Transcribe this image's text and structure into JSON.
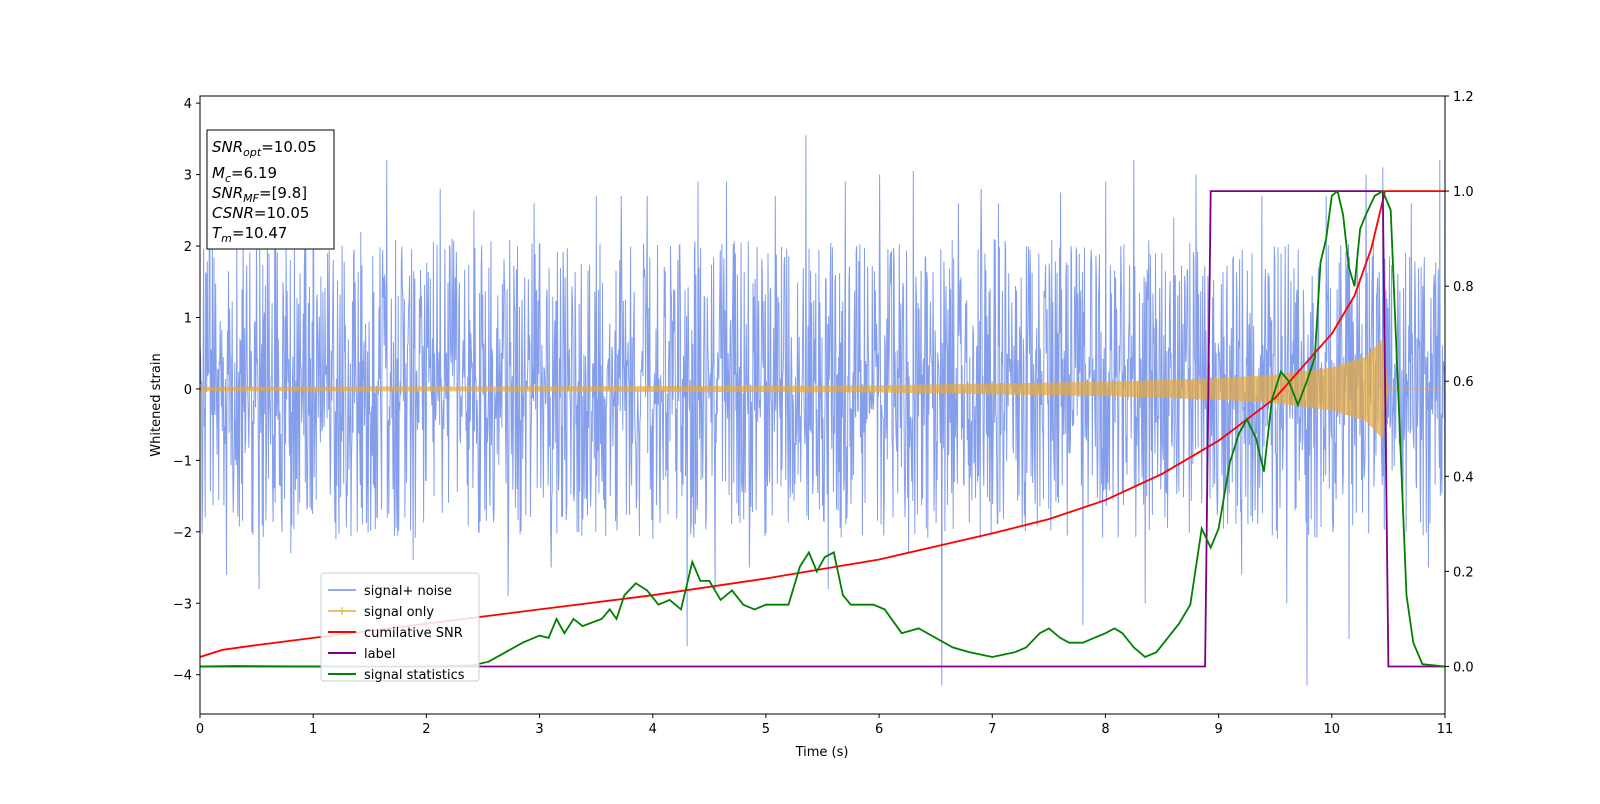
{
  "chart_data": {
    "type": "line",
    "xlabel": "Time (s)",
    "ylabel_left": "Whitened strain",
    "ylabel_right": "",
    "xlim": [
      0,
      11
    ],
    "ylim_left": [
      -4.55,
      4.1
    ],
    "ylim_right": [
      -0.1,
      1.2
    ],
    "x_ticks": [
      0,
      1,
      2,
      3,
      4,
      5,
      6,
      7,
      8,
      9,
      10,
      11
    ],
    "y_ticks_left": [
      -4,
      -3,
      -2,
      -1,
      0,
      1,
      2,
      3,
      4
    ],
    "y_ticks_right": [
      0.0,
      0.2,
      0.4,
      0.6,
      0.8,
      1.0,
      1.2
    ],
    "grid": false,
    "legend_position": "lower-left",
    "info_box": {
      "snr_opt": {
        "sym": "SNR",
        "sub": "opt",
        "val": "=10.05"
      },
      "mc": {
        "sym": "M",
        "sub": "c",
        "val": "=6.19"
      },
      "snr_mf": {
        "sym": "SNR",
        "sub": "MF",
        "val": "=[9.8]"
      },
      "csnr": {
        "sym": "CSNR",
        "val": "=10.05"
      },
      "tm": {
        "sym": "T",
        "sub": "m",
        "val": "=10.47"
      }
    },
    "series": [
      {
        "key": "noise",
        "name": "signal+ noise",
        "color": "#6f8de8",
        "axis": "left",
        "description": "whitened noisy strain, amplitude roughly ±1.8 with spikes to ±3.5",
        "envelope_peaks": [
          [
            0.08,
            2.1
          ],
          [
            0.23,
            -2.6
          ],
          [
            0.38,
            2.3
          ],
          [
            0.52,
            -2.8
          ],
          [
            0.66,
            2.0
          ],
          [
            0.8,
            -2.3
          ],
          [
            1.0,
            2.7
          ],
          [
            1.2,
            -2.1
          ],
          [
            1.42,
            2.2
          ],
          [
            1.65,
            3.2
          ],
          [
            1.88,
            -2.4
          ],
          [
            2.12,
            2.8
          ],
          [
            2.42,
            2.5
          ],
          [
            2.72,
            -2.9
          ],
          [
            2.95,
            2.6
          ],
          [
            3.1,
            -2.5
          ],
          [
            3.33,
            -2.0
          ],
          [
            3.5,
            2.7
          ],
          [
            3.72,
            2.7
          ],
          [
            3.95,
            2.7
          ],
          [
            4.3,
            -3.6
          ],
          [
            4.4,
            2.9
          ],
          [
            4.55,
            -2.8
          ],
          [
            4.65,
            2.9
          ],
          [
            4.85,
            -2.5
          ],
          [
            5.08,
            2.7
          ],
          [
            5.35,
            3.55
          ],
          [
            5.55,
            -2.8
          ],
          [
            5.7,
            2.9
          ],
          [
            6.0,
            3.0
          ],
          [
            6.26,
            -2.3
          ],
          [
            6.3,
            3.05
          ],
          [
            6.55,
            -4.15
          ],
          [
            6.7,
            2.6
          ],
          [
            6.9,
            2.8
          ],
          [
            7.05,
            2.6
          ],
          [
            7.3,
            2.0
          ],
          [
            7.6,
            2.75
          ],
          [
            7.8,
            -3.3
          ],
          [
            8.0,
            2.9
          ],
          [
            8.25,
            3.2
          ],
          [
            8.35,
            -3.0
          ],
          [
            8.6,
            2.4
          ],
          [
            8.8,
            3.0
          ],
          [
            9.2,
            -2.6
          ],
          [
            9.38,
            2.7
          ],
          [
            9.6,
            -3.0
          ],
          [
            9.78,
            -4.15
          ],
          [
            9.95,
            2.7
          ],
          [
            10.15,
            -3.5
          ],
          [
            10.3,
            3.0
          ],
          [
            10.45,
            3.1
          ],
          [
            10.7,
            2.6
          ],
          [
            10.85,
            -2.5
          ],
          [
            10.95,
            3.2
          ]
        ]
      },
      {
        "key": "signal",
        "name": "signal only",
        "color": "#e8a93a",
        "axis": "left",
        "description": "chirp: amplitude grows from about 0.03 at t=0 to about 0.7 at t=10.45, then ~0",
        "amplitude": [
          [
            0,
            0.03
          ],
          [
            3,
            0.035
          ],
          [
            6,
            0.05
          ],
          [
            8,
            0.1
          ],
          [
            9,
            0.15
          ],
          [
            9.5,
            0.2
          ],
          [
            10,
            0.3
          ],
          [
            10.3,
            0.45
          ],
          [
            10.45,
            0.7
          ],
          [
            10.5,
            0.0
          ],
          [
            11,
            0.0
          ]
        ]
      },
      {
        "key": "csnr",
        "name": "cumilative SNR",
        "color": "#ff0000",
        "axis": "right",
        "points": [
          [
            0,
            0.02
          ],
          [
            0.2,
            0.035
          ],
          [
            0.5,
            0.045
          ],
          [
            1,
            0.06
          ],
          [
            2,
            0.09
          ],
          [
            3,
            0.12
          ],
          [
            4,
            0.15
          ],
          [
            5,
            0.185
          ],
          [
            6,
            0.225
          ],
          [
            7,
            0.28
          ],
          [
            7.5,
            0.31
          ],
          [
            8,
            0.35
          ],
          [
            8.5,
            0.405
          ],
          [
            9,
            0.475
          ],
          [
            9.5,
            0.565
          ],
          [
            10,
            0.7
          ],
          [
            10.2,
            0.78
          ],
          [
            10.35,
            0.88
          ],
          [
            10.47,
            1.0
          ],
          [
            11,
            1.0
          ]
        ]
      },
      {
        "key": "label",
        "name": "label",
        "color": "#800080",
        "axis": "right",
        "points": [
          [
            0,
            0.0
          ],
          [
            8.88,
            0.0
          ],
          [
            8.93,
            1.0
          ],
          [
            10.45,
            1.0
          ],
          [
            10.5,
            0.0
          ],
          [
            11,
            0.0
          ]
        ]
      },
      {
        "key": "stats",
        "name": "signal statistics",
        "color": "#008000",
        "axis": "right",
        "points": [
          [
            0,
            0.0
          ],
          [
            0.3,
            0.001
          ],
          [
            1.0,
            0.0
          ],
          [
            2.0,
            0.0
          ],
          [
            2.4,
            0.002
          ],
          [
            2.55,
            0.01
          ],
          [
            2.7,
            0.03
          ],
          [
            2.85,
            0.05
          ],
          [
            3.0,
            0.065
          ],
          [
            3.08,
            0.06
          ],
          [
            3.15,
            0.1
          ],
          [
            3.22,
            0.07
          ],
          [
            3.3,
            0.1
          ],
          [
            3.38,
            0.085
          ],
          [
            3.55,
            0.1
          ],
          [
            3.62,
            0.12
          ],
          [
            3.68,
            0.1
          ],
          [
            3.75,
            0.15
          ],
          [
            3.85,
            0.175
          ],
          [
            3.95,
            0.16
          ],
          [
            4.05,
            0.13
          ],
          [
            4.15,
            0.14
          ],
          [
            4.25,
            0.12
          ],
          [
            4.3,
            0.17
          ],
          [
            4.35,
            0.22
          ],
          [
            4.42,
            0.18
          ],
          [
            4.5,
            0.18
          ],
          [
            4.6,
            0.14
          ],
          [
            4.7,
            0.16
          ],
          [
            4.8,
            0.13
          ],
          [
            4.9,
            0.12
          ],
          [
            5.0,
            0.13
          ],
          [
            5.1,
            0.13
          ],
          [
            5.2,
            0.13
          ],
          [
            5.3,
            0.21
          ],
          [
            5.38,
            0.24
          ],
          [
            5.45,
            0.2
          ],
          [
            5.52,
            0.23
          ],
          [
            5.6,
            0.24
          ],
          [
            5.68,
            0.15
          ],
          [
            5.75,
            0.13
          ],
          [
            5.85,
            0.13
          ],
          [
            5.95,
            0.13
          ],
          [
            6.05,
            0.12
          ],
          [
            6.2,
            0.07
          ],
          [
            6.35,
            0.08
          ],
          [
            6.5,
            0.06
          ],
          [
            6.65,
            0.04
          ],
          [
            6.8,
            0.03
          ],
          [
            7.0,
            0.02
          ],
          [
            7.1,
            0.025
          ],
          [
            7.2,
            0.03
          ],
          [
            7.3,
            0.04
          ],
          [
            7.42,
            0.07
          ],
          [
            7.5,
            0.08
          ],
          [
            7.6,
            0.06
          ],
          [
            7.68,
            0.05
          ],
          [
            7.8,
            0.05
          ],
          [
            7.9,
            0.06
          ],
          [
            8.0,
            0.07
          ],
          [
            8.08,
            0.08
          ],
          [
            8.15,
            0.07
          ],
          [
            8.25,
            0.04
          ],
          [
            8.35,
            0.02
          ],
          [
            8.45,
            0.03
          ],
          [
            8.55,
            0.06
          ],
          [
            8.65,
            0.09
          ],
          [
            8.75,
            0.13
          ],
          [
            8.85,
            0.29
          ],
          [
            8.93,
            0.25
          ],
          [
            9.0,
            0.29
          ],
          [
            9.1,
            0.43
          ],
          [
            9.18,
            0.49
          ],
          [
            9.25,
            0.52
          ],
          [
            9.33,
            0.48
          ],
          [
            9.4,
            0.41
          ],
          [
            9.47,
            0.56
          ],
          [
            9.55,
            0.62
          ],
          [
            9.62,
            0.6
          ],
          [
            9.7,
            0.55
          ],
          [
            9.78,
            0.6
          ],
          [
            9.85,
            0.65
          ],
          [
            9.9,
            0.85
          ],
          [
            9.95,
            0.9
          ],
          [
            10.0,
            0.99
          ],
          [
            10.05,
            1.0
          ],
          [
            10.1,
            0.95
          ],
          [
            10.15,
            0.84
          ],
          [
            10.2,
            0.8
          ],
          [
            10.25,
            0.92
          ],
          [
            10.3,
            0.95
          ],
          [
            10.38,
            0.99
          ],
          [
            10.45,
            1.0
          ],
          [
            10.52,
            0.96
          ],
          [
            10.6,
            0.5
          ],
          [
            10.66,
            0.15
          ],
          [
            10.72,
            0.05
          ],
          [
            10.8,
            0.005
          ],
          [
            11.0,
            0.0
          ]
        ]
      }
    ]
  }
}
